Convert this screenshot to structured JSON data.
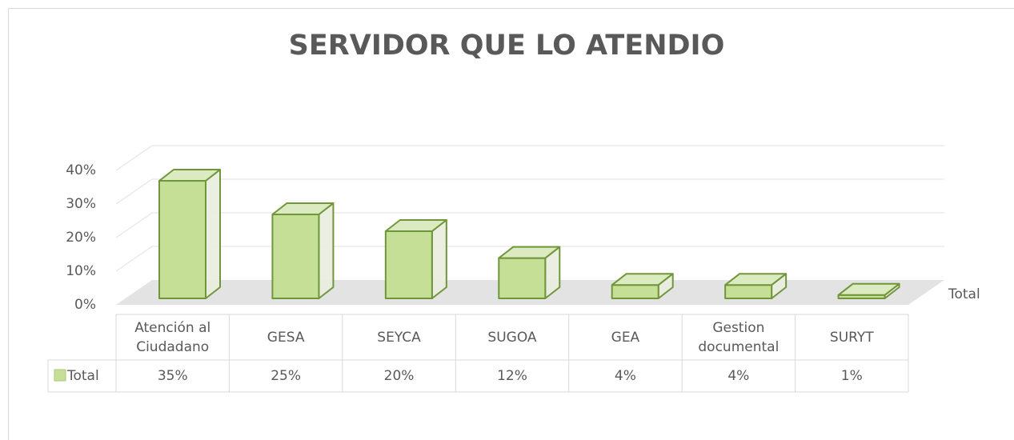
{
  "chart_data": {
    "type": "bar3d",
    "title": "SERVIDOR QUE LO ATENDIO",
    "categories": [
      "Atención al Ciudadano",
      "GESA",
      "SEYCA",
      "SUGOA",
      "GEA",
      "Gestion documental",
      "SURYT"
    ],
    "series": [
      {
        "name": "Total",
        "color": "#c5e096",
        "values": [
          35,
          25,
          20,
          12,
          4,
          4,
          1
        ],
        "value_labels": [
          "35%",
          "25%",
          "20%",
          "12%",
          "4%",
          "4%",
          "1%"
        ]
      }
    ],
    "ylim": [
      0,
      40
    ],
    "yticks": [
      {
        "value": 0,
        "label": "0%"
      },
      {
        "value": 10,
        "label": "10%"
      },
      {
        "value": 20,
        "label": "20%"
      },
      {
        "value": 30,
        "label": "30%"
      },
      {
        "value": 40,
        "label": "40%"
      }
    ],
    "grid": true
  }
}
